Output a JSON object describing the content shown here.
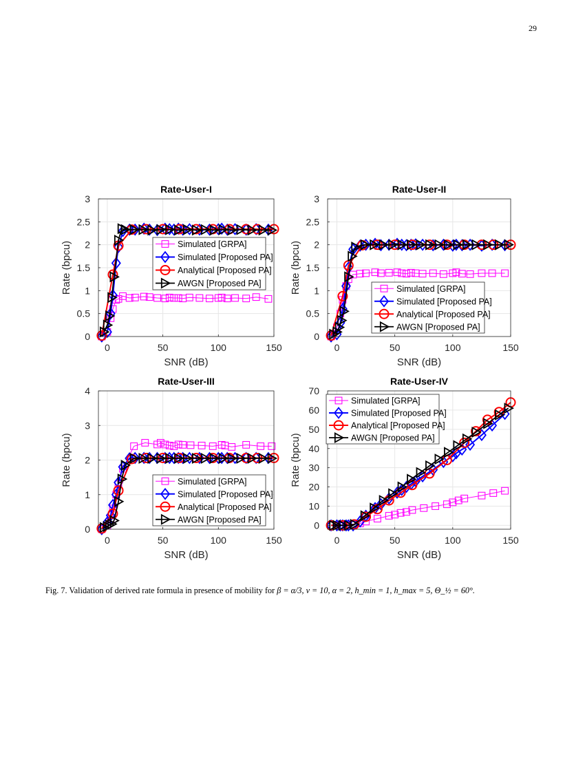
{
  "page_number": "29",
  "caption": {
    "label": "Fig. 7.",
    "text": "Validation of derived rate formula in presence of mobility for",
    "math": "β = α/3, ν = 10, α = 2, h_min = 1, h_max = 5, Θ_½ = 60°."
  },
  "colors": {
    "grpa": "#ff00ff",
    "simulated": "#0000ff",
    "analytical": "#ff0000",
    "awgn": "#000000"
  },
  "chart_data": [
    {
      "type": "line",
      "title": "Rate-User-I",
      "xlabel": "SNR (dB)",
      "ylabel": "Rate (bpcu)",
      "xlim": [
        -8,
        150
      ],
      "ylim": [
        0,
        3
      ],
      "xticks": [
        0,
        50,
        100,
        150
      ],
      "yticks": [
        0,
        0.5,
        1,
        1.5,
        2,
        2.5,
        3
      ],
      "ytick_labels": [
        "0",
        "0.5",
        "1",
        "1.5",
        "2",
        "2.5",
        "3"
      ],
      "grid": true,
      "legend_position": "center-right",
      "series": [
        {
          "name": "Simulated [GRPA]",
          "marker": "square",
          "color_key": "grpa",
          "x": [
            -5,
            0,
            3,
            5,
            8,
            10,
            14,
            20,
            25,
            33,
            38,
            45,
            52,
            56,
            60,
            64,
            68,
            74,
            83,
            92,
            100,
            103,
            108,
            115,
            125,
            134,
            145
          ],
          "y": [
            0,
            0.1,
            0.4,
            0.6,
            0.8,
            0.82,
            0.88,
            0.84,
            0.85,
            0.87,
            0.86,
            0.84,
            0.83,
            0.85,
            0.84,
            0.84,
            0.83,
            0.85,
            0.84,
            0.83,
            0.84,
            0.85,
            0.83,
            0.84,
            0.83,
            0.86,
            0.82
          ]
        },
        {
          "name": "Simulated [Proposed PA]",
          "marker": "diamond",
          "color_key": "simulated",
          "x": [
            -5,
            0,
            3,
            5,
            8,
            10,
            14,
            20,
            25,
            33,
            38,
            45,
            52,
            56,
            60,
            64,
            68,
            74,
            83,
            92,
            100,
            103,
            108,
            115,
            125,
            134,
            145
          ],
          "y": [
            0,
            0.1,
            0.5,
            0.9,
            1.6,
            1.95,
            2.3,
            2.33,
            2.33,
            2.35,
            2.33,
            2.32,
            2.35,
            2.34,
            2.33,
            2.35,
            2.33,
            2.34,
            2.33,
            2.33,
            2.34,
            2.35,
            2.33,
            2.34,
            2.33,
            2.34,
            2.33
          ]
        },
        {
          "name": "Analytical [Proposed PA]",
          "marker": "circle",
          "color_key": "analytical",
          "x": [
            -5,
            5,
            10,
            22,
            35,
            50,
            65,
            80,
            95,
            110,
            125,
            135,
            150
          ],
          "y": [
            0.02,
            1.35,
            1.98,
            2.33,
            2.34,
            2.34,
            2.34,
            2.34,
            2.34,
            2.34,
            2.34,
            2.34,
            2.34
          ]
        },
        {
          "name": "AWGN [Proposed PA]",
          "marker": "triangle-right",
          "color_key": "awgn",
          "x": [
            -3,
            0,
            2,
            4,
            6,
            10,
            13,
            16,
            24,
            32,
            40,
            48,
            56,
            64,
            72,
            80,
            88,
            96,
            104,
            112,
            120,
            130,
            140,
            148
          ],
          "y": [
            0.1,
            0.25,
            0.45,
            0.85,
            1.3,
            2.1,
            2.35,
            2.33,
            2.33,
            2.33,
            2.32,
            2.33,
            2.33,
            2.32,
            2.33,
            2.32,
            2.33,
            2.32,
            2.33,
            2.32,
            2.33,
            2.32,
            2.32,
            2.32
          ]
        }
      ]
    },
    {
      "type": "line",
      "title": "Rate-User-II",
      "xlabel": "SNR (dB)",
      "ylabel": "Rate (bpcu)",
      "xlim": [
        -8,
        150
      ],
      "ylim": [
        0,
        3
      ],
      "xticks": [
        0,
        50,
        100,
        150
      ],
      "yticks": [
        0,
        0.5,
        1,
        1.5,
        2,
        2.5,
        3
      ],
      "ytick_labels": [
        "0",
        "0.5",
        "1",
        "1.5",
        "2",
        "2.5",
        "3"
      ],
      "grid": true,
      "legend_position": "bottom-right",
      "series": [
        {
          "name": "Simulated [GRPA]",
          "marker": "square",
          "color_key": "grpa",
          "x": [
            -5,
            0,
            3,
            5,
            8,
            10,
            14,
            20,
            25,
            33,
            38,
            45,
            52,
            56,
            60,
            64,
            68,
            74,
            83,
            92,
            100,
            103,
            108,
            115,
            125,
            134,
            145
          ],
          "y": [
            0,
            0.2,
            0.5,
            0.8,
            1.1,
            1.25,
            1.35,
            1.37,
            1.38,
            1.4,
            1.38,
            1.39,
            1.4,
            1.38,
            1.37,
            1.39,
            1.38,
            1.37,
            1.38,
            1.36,
            1.38,
            1.4,
            1.37,
            1.36,
            1.38,
            1.38,
            1.38
          ]
        },
        {
          "name": "Simulated [Proposed PA]",
          "marker": "diamond",
          "color_key": "simulated",
          "x": [
            -5,
            0,
            3,
            5,
            8,
            10,
            14,
            20,
            25,
            33,
            38,
            45,
            52,
            56,
            60,
            64,
            68,
            74,
            83,
            92,
            100,
            103,
            108,
            115,
            125,
            134,
            145
          ],
          "y": [
            0,
            0.05,
            0.3,
            0.6,
            1.1,
            1.5,
            1.9,
            1.98,
            2.0,
            2.02,
            1.99,
            2.0,
            2.02,
            2.0,
            1.99,
            2.0,
            2.01,
            2.0,
            1.99,
            2.0,
            1.98,
            2.0,
            1.99,
            2.0,
            1.98,
            2.0,
            1.99
          ]
        },
        {
          "name": "Analytical [Proposed PA]",
          "marker": "circle",
          "color_key": "analytical",
          "x": [
            -5,
            5,
            10,
            22,
            35,
            50,
            65,
            80,
            95,
            110,
            125,
            135,
            150
          ],
          "y": [
            0.02,
            0.88,
            1.55,
            1.99,
            2.0,
            2.0,
            2.0,
            2.0,
            2.0,
            2.0,
            2.0,
            2.0,
            2.0
          ]
        },
        {
          "name": "AWGN [Proposed PA]",
          "marker": "triangle-right",
          "color_key": "awgn",
          "x": [
            -3,
            0,
            2,
            4,
            6,
            10,
            13,
            16,
            24,
            32,
            40,
            48,
            56,
            64,
            72,
            80,
            88,
            96,
            104,
            112,
            120,
            130,
            140,
            148
          ],
          "y": [
            0.05,
            0.1,
            0.2,
            0.35,
            0.55,
            1.3,
            1.75,
            1.95,
            2.0,
            2.0,
            2.0,
            2.0,
            2.0,
            2.0,
            2.0,
            2.0,
            2.0,
            2.0,
            2.0,
            2.0,
            2.0,
            2.0,
            2.0,
            2.0
          ]
        }
      ]
    },
    {
      "type": "line",
      "title": "Rate-User-III",
      "xlabel": "SNR (dB)",
      "ylabel": "Rate (bpcu)",
      "xlim": [
        -8,
        150
      ],
      "ylim": [
        0,
        4
      ],
      "xticks": [
        0,
        50,
        100,
        150
      ],
      "yticks": [
        0,
        1,
        2,
        3,
        4
      ],
      "ytick_labels": [
        "0",
        "1",
        "2",
        "3",
        "4"
      ],
      "grid": true,
      "legend_position": "bottom-right",
      "series": [
        {
          "name": "Simulated [GRPA]",
          "marker": "square",
          "color_key": "grpa",
          "x": [
            -5,
            0,
            3,
            5,
            8,
            10,
            14,
            24,
            34,
            45,
            48,
            52,
            56,
            60,
            64,
            68,
            75,
            85,
            95,
            103,
            106,
            112,
            125,
            138,
            148
          ],
          "y": [
            0,
            0.1,
            0.3,
            0.6,
            1.0,
            1.3,
            1.75,
            2.4,
            2.5,
            2.45,
            2.5,
            2.45,
            2.42,
            2.4,
            2.45,
            2.44,
            2.43,
            2.42,
            2.4,
            2.44,
            2.42,
            2.38,
            2.44,
            2.4,
            2.4
          ]
        },
        {
          "name": "Simulated [Proposed PA]",
          "marker": "diamond",
          "color_key": "simulated",
          "x": [
            -5,
            0,
            3,
            5,
            8,
            10,
            14,
            20,
            25,
            33,
            38,
            45,
            52,
            56,
            60,
            64,
            68,
            74,
            83,
            92,
            100,
            103,
            108,
            115,
            125,
            134,
            145
          ],
          "y": [
            0,
            0.2,
            0.4,
            0.7,
            1.0,
            1.35,
            1.8,
            2.05,
            2.06,
            2.06,
            2.06,
            2.06,
            2.06,
            2.06,
            2.06,
            2.06,
            2.06,
            2.06,
            2.06,
            2.06,
            2.06,
            2.06,
            2.06,
            2.06,
            2.06,
            2.06,
            2.06
          ]
        },
        {
          "name": "Analytical [Proposed PA]",
          "marker": "circle",
          "color_key": "analytical",
          "x": [
            -5,
            5,
            10,
            22,
            35,
            50,
            65,
            80,
            95,
            110,
            125,
            135,
            150
          ],
          "y": [
            0.02,
            0.45,
            1.12,
            2.03,
            2.06,
            2.06,
            2.06,
            2.06,
            2.06,
            2.06,
            2.06,
            2.06,
            2.06
          ]
        },
        {
          "name": "AWGN [Proposed PA]",
          "marker": "triangle-right",
          "color_key": "awgn",
          "x": [
            -3,
            0,
            2,
            4,
            6,
            10,
            13,
            16,
            24,
            32,
            40,
            48,
            56,
            64,
            72,
            80,
            88,
            96,
            104,
            112,
            120,
            130,
            140,
            148
          ],
          "y": [
            0.05,
            0.08,
            0.12,
            0.15,
            0.25,
            0.8,
            1.45,
            1.85,
            2.05,
            2.05,
            2.05,
            2.05,
            2.05,
            2.05,
            2.05,
            2.05,
            2.05,
            2.05,
            2.05,
            2.05,
            2.05,
            2.05,
            2.05,
            2.05
          ]
        }
      ]
    },
    {
      "type": "line",
      "title": "Rate-User-IV",
      "xlabel": "SNR (dB)",
      "ylabel": "Rate (bpcu)",
      "xlim": [
        -8,
        150
      ],
      "ylim": [
        -2,
        70
      ],
      "xticks": [
        0,
        50,
        100,
        150
      ],
      "yticks": [
        0,
        10,
        20,
        30,
        40,
        50,
        60,
        70
      ],
      "ytick_labels": [
        "0",
        "10",
        "20",
        "30",
        "40",
        "50",
        "60",
        "70"
      ],
      "grid": true,
      "legend_position": "top-left",
      "series": [
        {
          "name": "Simulated [GRPA]",
          "marker": "square",
          "color_key": "grpa",
          "x": [
            -5,
            0,
            3,
            8,
            15,
            20,
            25,
            35,
            45,
            50,
            55,
            60,
            65,
            75,
            85,
            95,
            100,
            105,
            110,
            125,
            135,
            145
          ],
          "y": [
            0,
            0,
            0,
            0,
            0.5,
            1,
            2,
            3.5,
            5,
            5.6,
            6.5,
            7,
            8,
            9,
            10,
            11,
            12,
            13,
            14,
            15.5,
            16.8,
            18
          ]
        },
        {
          "name": "Simulated [Proposed PA]",
          "marker": "diamond",
          "color_key": "simulated",
          "x": [
            -5,
            0,
            3,
            5,
            8,
            10,
            14,
            20,
            25,
            33,
            38,
            45,
            52,
            56,
            60,
            64,
            68,
            74,
            83,
            92,
            100,
            103,
            108,
            115,
            125,
            134,
            145
          ],
          "y": [
            0,
            0,
            0,
            0,
            0,
            0,
            0,
            2,
            5,
            9,
            11,
            14,
            17,
            18.5,
            20,
            21.5,
            23,
            25.5,
            29,
            33,
            36,
            37.5,
            39.5,
            42,
            47,
            52,
            58
          ]
        },
        {
          "name": "Analytical [Proposed PA]",
          "marker": "circle",
          "color_key": "analytical",
          "x": [
            -5,
            5,
            15,
            25,
            35,
            45,
            55,
            65,
            80,
            95,
            110,
            120,
            130,
            140,
            150
          ],
          "y": [
            0,
            0,
            0.5,
            4.5,
            8.5,
            13,
            17,
            21,
            27,
            34,
            43,
            49,
            55,
            59,
            64
          ]
        },
        {
          "name": "AWGN [Proposed PA]",
          "marker": "triangle-right",
          "color_key": "awgn",
          "x": [
            -3,
            0,
            5,
            10,
            15,
            24,
            32,
            40,
            48,
            56,
            64,
            72,
            80,
            88,
            96,
            104,
            112,
            120,
            130,
            140,
            148
          ],
          "y": [
            0,
            0,
            0,
            0,
            0.5,
            5,
            9,
            13,
            16.5,
            20,
            24,
            27.5,
            31,
            34.5,
            38,
            41.5,
            45,
            48.5,
            53,
            57.5,
            61
          ]
        }
      ]
    }
  ]
}
